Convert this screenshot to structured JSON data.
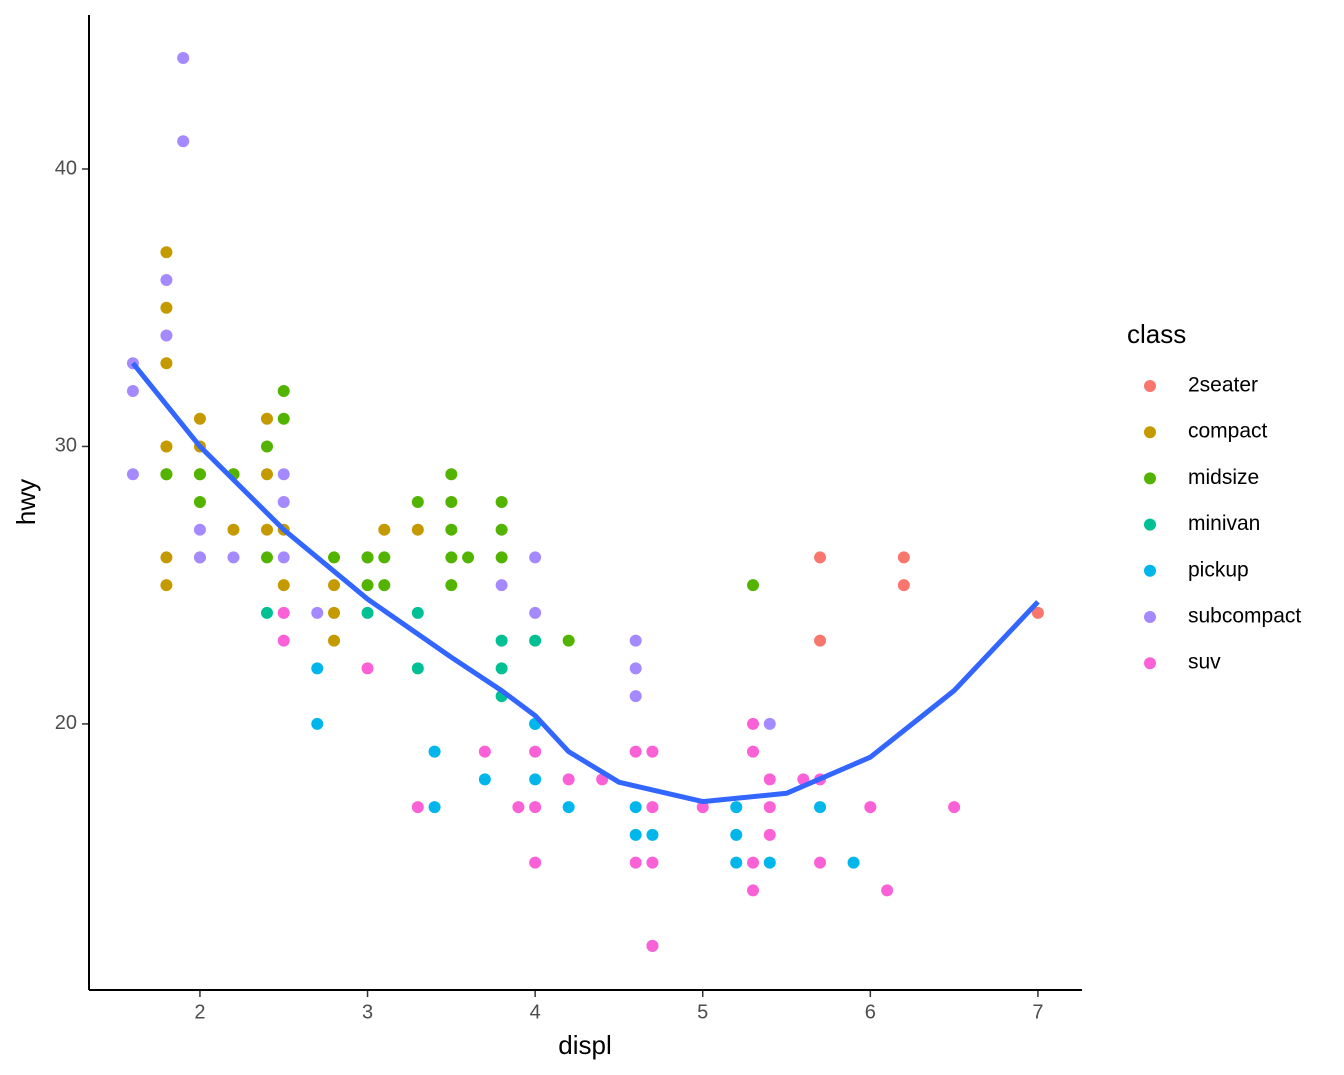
{
  "chart_data": {
    "type": "scatter",
    "x_label": "displ",
    "y_label": "hwy",
    "legend_title": "class",
    "legend_position": "right",
    "grid": false,
    "xlim": [
      1.338,
      7.263
    ],
    "ylim": [
      10.41,
      45.55
    ],
    "xticks": [
      2,
      3,
      4,
      5,
      6,
      7
    ],
    "yticks": [
      20,
      30,
      40
    ],
    "series": [
      {
        "name": "2seater",
        "color": "#f8766d",
        "x": [
          5.7,
          5.7,
          6.2,
          6.2,
          7.0
        ],
        "y": [
          26,
          23,
          26,
          25,
          24
        ]
      },
      {
        "name": "compact",
        "color": "#c49a00",
        "x": [
          1.8,
          1.8,
          1.8,
          1.8,
          1.8,
          1.8,
          2.0,
          2.0,
          2.0,
          2.2,
          2.2,
          2.4,
          2.4,
          2.4,
          2.5,
          2.5,
          2.8,
          2.8,
          2.8,
          3.0,
          3.1,
          3.3,
          1.8,
          2.0
        ],
        "y": [
          37,
          35,
          33,
          30,
          26,
          25,
          31,
          30,
          29,
          29,
          27,
          31,
          29,
          27,
          27,
          25,
          25,
          24,
          23,
          26,
          27,
          27,
          29,
          26
        ]
      },
      {
        "name": "midsize",
        "color": "#53b400",
        "x": [
          1.8,
          2.0,
          2.0,
          2.4,
          2.4,
          2.5,
          2.5,
          2.8,
          3.0,
          3.1,
          3.1,
          3.3,
          3.5,
          3.5,
          3.5,
          3.5,
          3.5,
          3.6,
          3.8,
          3.8,
          3.8,
          4.2,
          5.3,
          2.2,
          3.0
        ],
        "y": [
          29,
          29,
          28,
          30,
          26,
          32,
          31,
          26,
          25,
          26,
          25,
          28,
          29,
          28,
          27,
          26,
          25,
          26,
          28,
          27,
          26,
          23,
          25,
          29,
          26
        ]
      },
      {
        "name": "minivan",
        "color": "#00c094",
        "x": [
          2.4,
          3.0,
          3.3,
          3.3,
          3.8,
          3.8,
          3.8,
          4.0,
          4.0
        ],
        "y": [
          24,
          24,
          24,
          22,
          23,
          22,
          21,
          23,
          20
        ]
      },
      {
        "name": "pickup",
        "color": "#00b6eb",
        "x": [
          2.7,
          2.7,
          3.4,
          3.4,
          3.7,
          4.0,
          4.0,
          4.2,
          4.6,
          4.6,
          4.7,
          5.2,
          5.2,
          5.2,
          5.4,
          5.7,
          5.9,
          4.7
        ],
        "y": [
          22,
          20,
          19,
          17,
          18,
          20,
          18,
          17,
          17,
          16,
          16,
          17,
          16,
          15,
          15,
          17,
          15,
          12
        ]
      },
      {
        "name": "subcompact",
        "color": "#a58aff",
        "x": [
          1.6,
          1.6,
          1.6,
          1.8,
          1.8,
          1.9,
          1.9,
          2.0,
          2.0,
          2.2,
          2.5,
          2.5,
          2.5,
          2.7,
          3.8,
          4.0,
          4.0,
          4.6,
          4.6,
          4.6,
          5.4
        ],
        "y": [
          33,
          32,
          29,
          36,
          34,
          44,
          41,
          27,
          26,
          26,
          29,
          28,
          26,
          24,
          25,
          26,
          24,
          23,
          22,
          21,
          20
        ]
      },
      {
        "name": "suv",
        "color": "#fb61d7",
        "x": [
          2.5,
          2.5,
          3.0,
          3.3,
          3.7,
          3.9,
          4.0,
          4.0,
          4.0,
          4.2,
          4.4,
          4.6,
          4.6,
          4.7,
          4.7,
          4.7,
          4.7,
          5.0,
          5.3,
          5.3,
          5.3,
          5.3,
          5.4,
          5.4,
          5.4,
          5.6,
          5.7,
          5.7,
          6.0,
          6.1,
          6.5
        ],
        "y": [
          24,
          23,
          22,
          17,
          19,
          17,
          19,
          17,
          15,
          18,
          18,
          19,
          15,
          19,
          17,
          15,
          12,
          17,
          20,
          19,
          15,
          14,
          18,
          17,
          16,
          18,
          18,
          15,
          17,
          14,
          17
        ]
      }
    ],
    "smooth": {
      "color": "#3366ff",
      "x": [
        1.6,
        2.0,
        2.5,
        3.0,
        3.5,
        3.8,
        4.0,
        4.2,
        4.5,
        5.0,
        5.5,
        6.0,
        6.5,
        7.0
      ],
      "y": [
        33.0,
        30.0,
        27.0,
        24.5,
        22.4,
        21.2,
        20.3,
        19.0,
        17.9,
        17.2,
        17.5,
        18.8,
        21.2,
        24.4
      ]
    }
  }
}
